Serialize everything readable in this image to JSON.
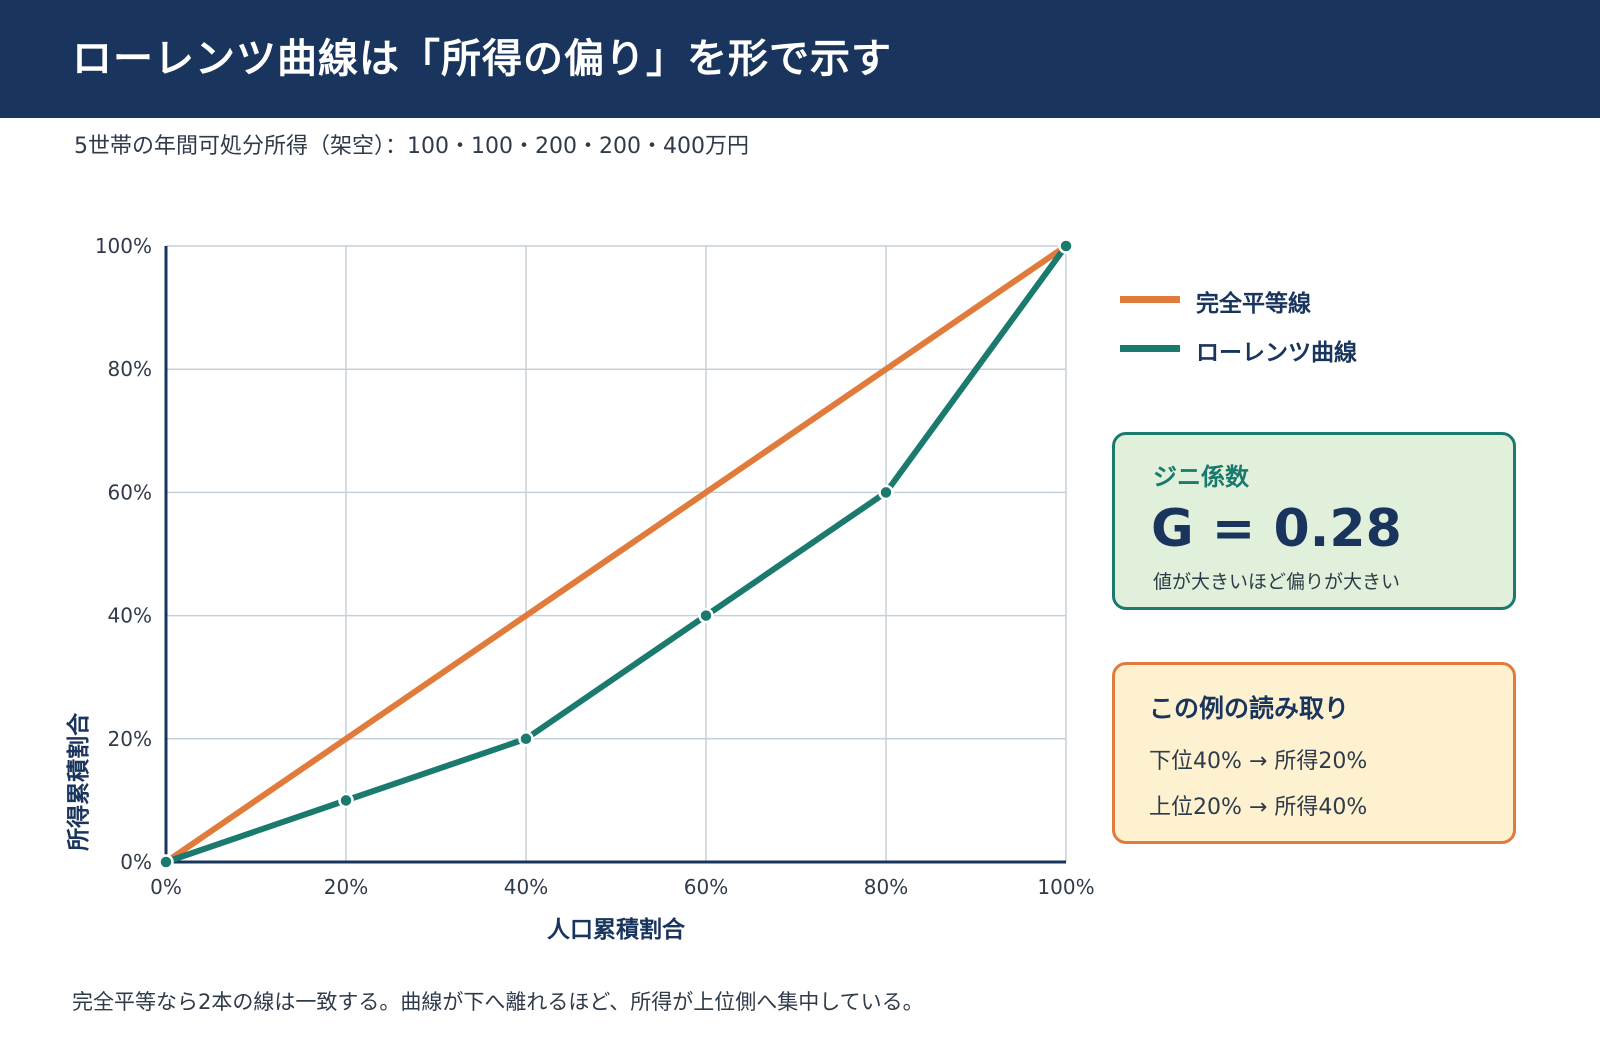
{
  "header": {
    "title": "ローレンツ曲線は「所得の偏り」を形で示す"
  },
  "subtitle": "5世帯の年間可処分所得（架空）：100・100・200・200・400万円",
  "chart_data": {
    "type": "line",
    "xlabel": "人口累積割合",
    "ylabel": "所得累積割合",
    "xlim": [
      0,
      100
    ],
    "ylim": [
      0,
      100
    ],
    "x_ticks": [
      "0%",
      "20%",
      "40%",
      "60%",
      "80%",
      "100%"
    ],
    "y_ticks": [
      "0%",
      "20%",
      "40%",
      "60%",
      "80%",
      "100%"
    ],
    "grid": true,
    "legend_position": "right",
    "series": [
      {
        "name": "完全平等線",
        "color": "#e07b3c",
        "markers": false,
        "x": [
          0,
          20,
          40,
          60,
          80,
          100
        ],
        "y": [
          0,
          20,
          40,
          60,
          80,
          100
        ]
      },
      {
        "name": "ローレンツ曲線",
        "color": "#1b7a6e",
        "markers": true,
        "x": [
          0,
          20,
          40,
          60,
          80,
          100
        ],
        "y": [
          0,
          10,
          20,
          40,
          60,
          100
        ]
      }
    ]
  },
  "gini_card": {
    "title": "ジニ係数",
    "value": "G = 0.28",
    "note": "値が大きいほど偏りが大きい"
  },
  "reading_card": {
    "title": "この例の読み取り",
    "lines": [
      "下位40% → 所得20%",
      "上位20% → 所得40%"
    ]
  },
  "footnote": "完全平等なら2本の線は一致する。曲線が下へ離れるほど、所得が上位側へ集中している。",
  "colors": {
    "header_bg": "#1a355d",
    "equality": "#e07b3c",
    "lorenz": "#1b7a6e"
  }
}
